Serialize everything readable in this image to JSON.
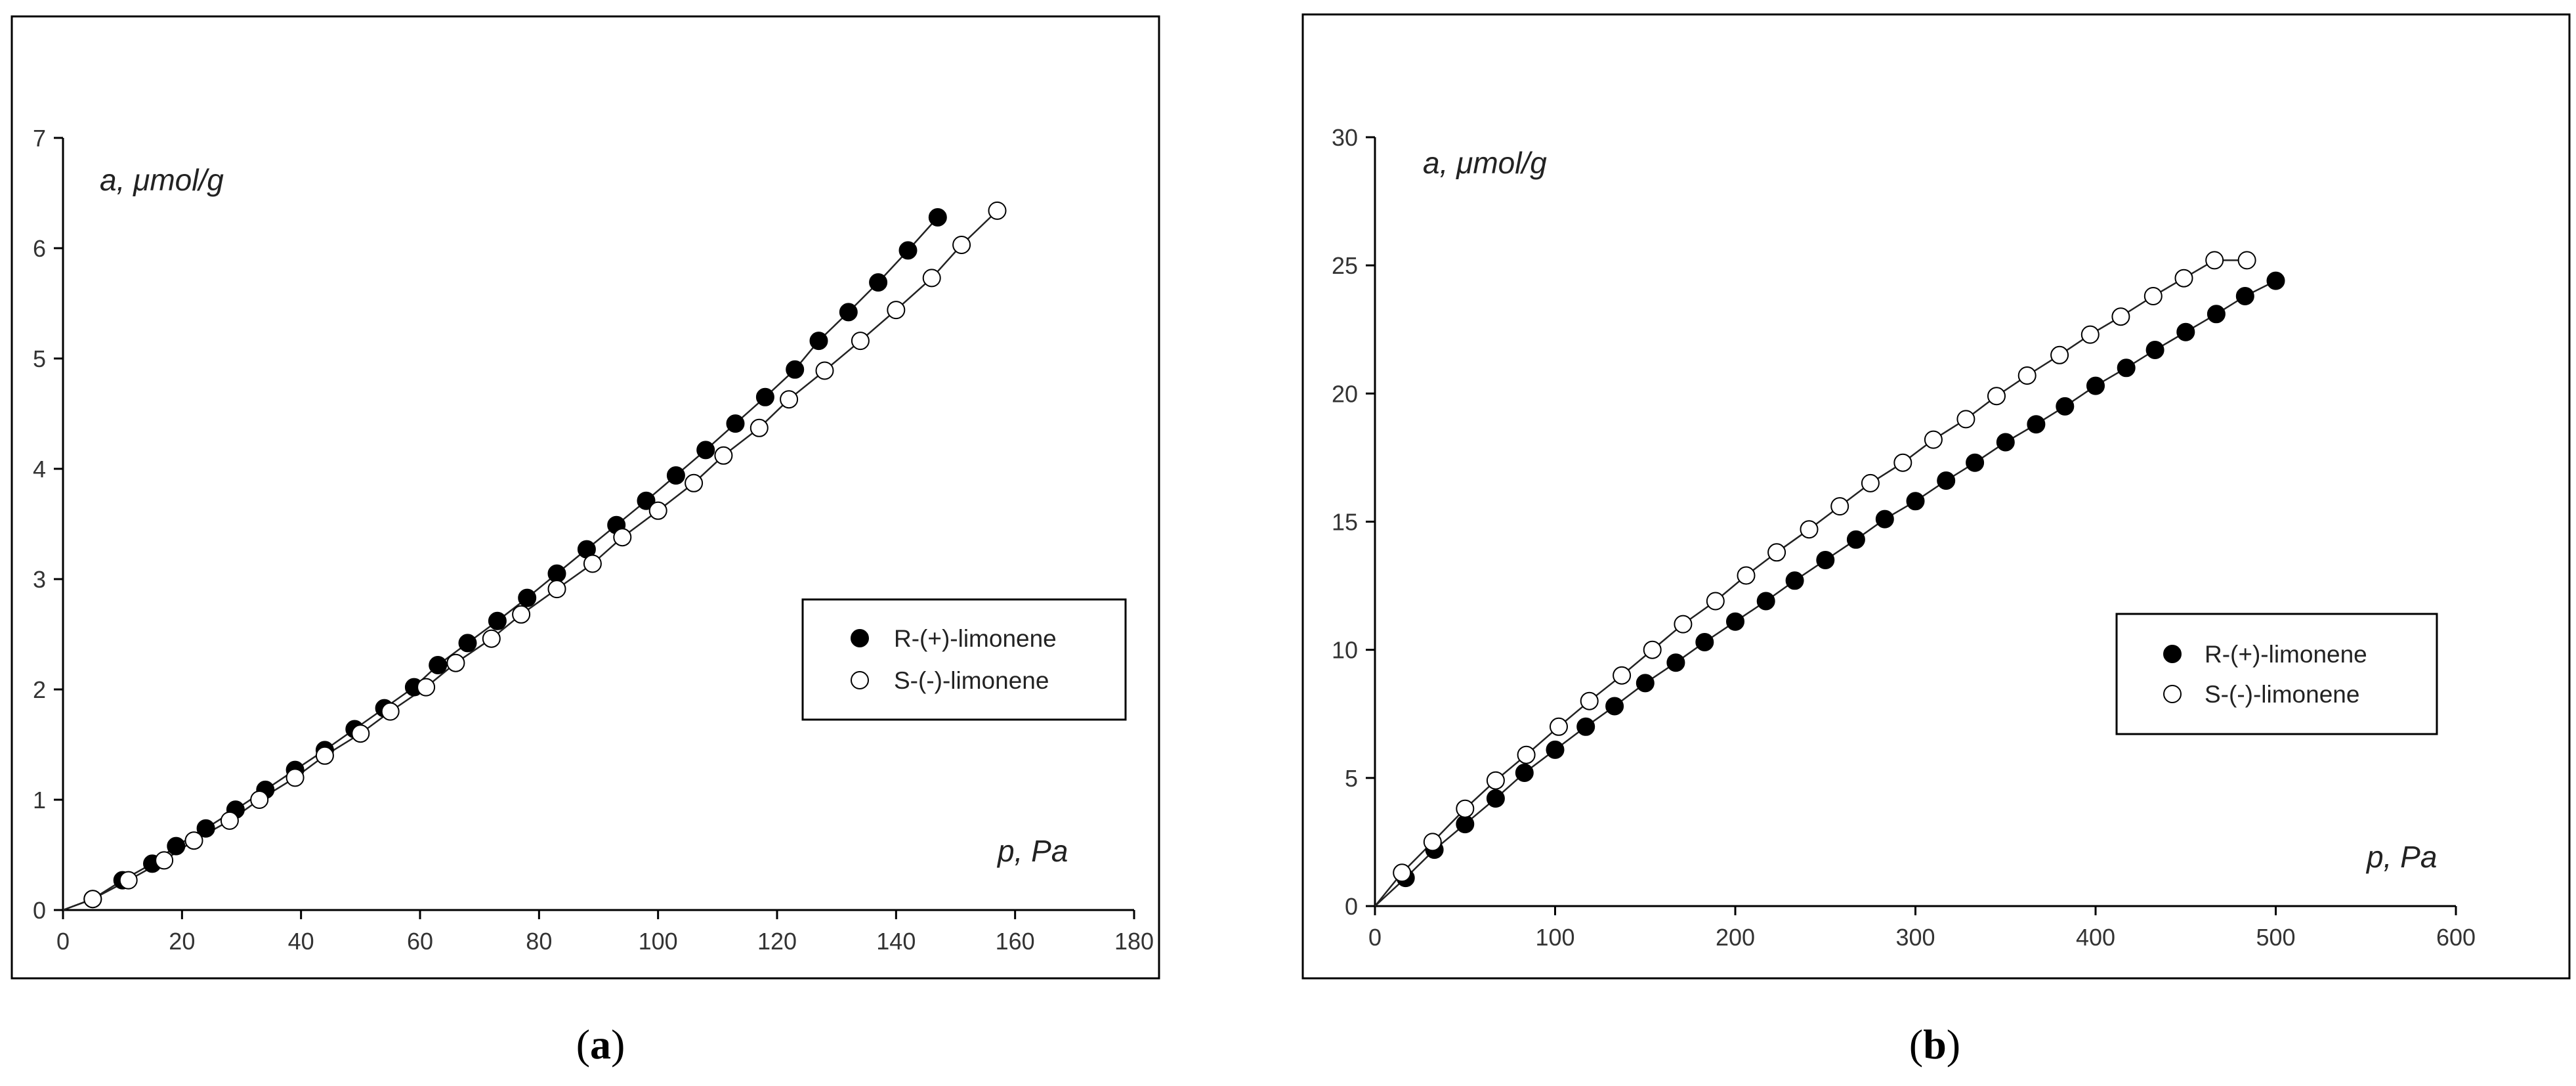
{
  "chart_data": [
    {
      "type": "scatter",
      "panel_label": "a",
      "xlabel": "p, Pa",
      "ylabel": "a, μmol/g",
      "xlim": [
        0,
        180
      ],
      "ylim": [
        0,
        7
      ],
      "xticks": [
        0,
        20,
        40,
        60,
        80,
        100,
        120,
        140,
        160,
        180
      ],
      "yticks": [
        0,
        1,
        2,
        3,
        4,
        5,
        6,
        7
      ],
      "legend_position": "center-right",
      "fit_lines": true,
      "series": [
        {
          "name": "R-(+)-limonene",
          "marker": "filled-circle",
          "x": [
            5,
            10,
            15,
            19,
            24,
            29,
            34,
            39,
            44,
            49,
            54,
            59,
            63,
            68,
            73,
            78,
            83,
            88,
            93,
            98,
            103,
            108,
            113,
            118,
            123,
            127,
            132,
            137,
            142,
            147
          ],
          "y": [
            0.1,
            0.27,
            0.42,
            0.58,
            0.74,
            0.91,
            1.09,
            1.27,
            1.45,
            1.64,
            1.83,
            2.02,
            2.22,
            2.42,
            2.62,
            2.83,
            3.05,
            3.27,
            3.49,
            3.71,
            3.94,
            4.17,
            4.41,
            4.65,
            4.9,
            5.16,
            5.42,
            5.69,
            5.98,
            6.28
          ]
        },
        {
          "name": "S-(-)-limonene",
          "marker": "open-circle",
          "x": [
            5,
            11,
            17,
            22,
            28,
            33,
            39,
            44,
            50,
            55,
            61,
            66,
            72,
            77,
            83,
            89,
            94,
            100,
            106,
            111,
            117,
            122,
            128,
            134,
            140,
            146,
            151,
            157
          ],
          "y": [
            0.1,
            0.27,
            0.45,
            0.63,
            0.81,
            1.0,
            1.2,
            1.4,
            1.6,
            1.8,
            2.02,
            2.24,
            2.46,
            2.68,
            2.91,
            3.14,
            3.38,
            3.62,
            3.87,
            4.12,
            4.37,
            4.63,
            4.89,
            5.16,
            5.44,
            5.73,
            6.03,
            6.34
          ]
        }
      ]
    },
    {
      "type": "scatter",
      "panel_label": "b",
      "xlabel": "p, Pa",
      "ylabel": "a, μmol/g",
      "xlim": [
        0,
        600
      ],
      "ylim": [
        0,
        30
      ],
      "xticks": [
        0,
        100,
        200,
        300,
        400,
        500,
        600
      ],
      "yticks": [
        0,
        5,
        10,
        15,
        20,
        25,
        30
      ],
      "legend_position": "center-right",
      "fit_lines": true,
      "series": [
        {
          "name": "R-(+)-limonene",
          "marker": "filled-circle",
          "x": [
            17,
            33,
            50,
            67,
            83,
            100,
            117,
            133,
            150,
            167,
            183,
            200,
            217,
            233,
            250,
            267,
            283,
            300,
            317,
            333,
            350,
            367,
            383,
            400,
            417,
            433,
            450,
            467,
            483,
            500
          ],
          "y": [
            1.1,
            2.2,
            3.2,
            4.2,
            5.2,
            6.1,
            7.0,
            7.8,
            8.7,
            9.5,
            10.3,
            11.1,
            11.9,
            12.7,
            13.5,
            14.3,
            15.1,
            15.8,
            16.6,
            17.3,
            18.1,
            18.8,
            19.5,
            20.3,
            21.0,
            21.7,
            22.4,
            23.1,
            23.8,
            24.4
          ]
        },
        {
          "name": "S-(-)-limonene",
          "marker": "open-circle",
          "x": [
            15,
            32,
            50,
            67,
            84,
            102,
            119,
            137,
            154,
            171,
            189,
            206,
            223,
            241,
            258,
            275,
            293,
            310,
            328,
            345,
            362,
            380,
            397,
            414,
            432,
            449,
            466,
            484
          ],
          "y": [
            1.3,
            2.5,
            3.8,
            4.9,
            5.9,
            7.0,
            8.0,
            9.0,
            10.0,
            11.0,
            11.9,
            12.9,
            13.8,
            14.7,
            15.6,
            16.5,
            17.3,
            18.2,
            19.0,
            19.9,
            20.7,
            21.5,
            22.3,
            23.0,
            23.8,
            24.5,
            25.2,
            25.2
          ]
        }
      ]
    }
  ],
  "captions": [
    "(a)",
    "(b)"
  ]
}
